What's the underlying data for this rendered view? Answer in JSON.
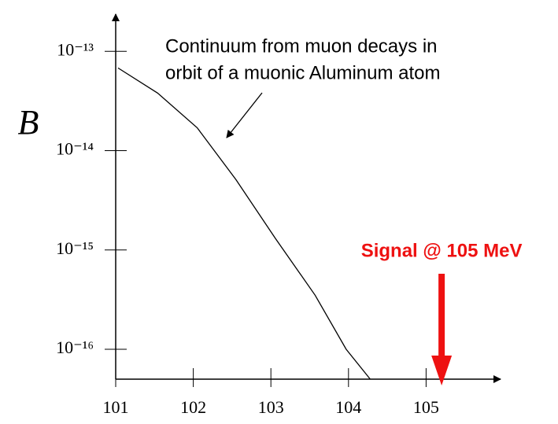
{
  "chart_data": {
    "type": "line",
    "y_label": "B",
    "annotations": [
      "Continuum from muon decays in",
      "orbit of a muonic Aluminum atom"
    ],
    "signal_label": "Signal @ 105 MeV",
    "signal_x": 105.2,
    "signal_color": "#ee1111",
    "x": [
      101.03,
      101.54,
      102.05,
      102.55,
      103.06,
      103.57,
      103.97,
      104.28
    ],
    "series": [
      {
        "name": "Continuum",
        "color": "#000000",
        "values": [
          6.8e-14,
          3.8e-14,
          1.7e-14,
          5.1e-15,
          1.3e-15,
          3.5e-16,
          1e-16,
          5e-17
        ]
      }
    ],
    "xlim": [
      101,
      106
    ],
    "xticks": [
      101,
      102,
      103,
      104,
      105
    ],
    "ylim": [
      5e-17,
      2.5e-13
    ],
    "ylog": true,
    "yticks": [
      {
        "value": 1e-13,
        "label": "10⁻¹³"
      },
      {
        "value": 1e-14,
        "label": "10⁻¹⁴"
      },
      {
        "value": 1e-15,
        "label": "10⁻¹⁵"
      },
      {
        "value": 1e-16,
        "label": "10⁻¹⁶"
      }
    ]
  }
}
